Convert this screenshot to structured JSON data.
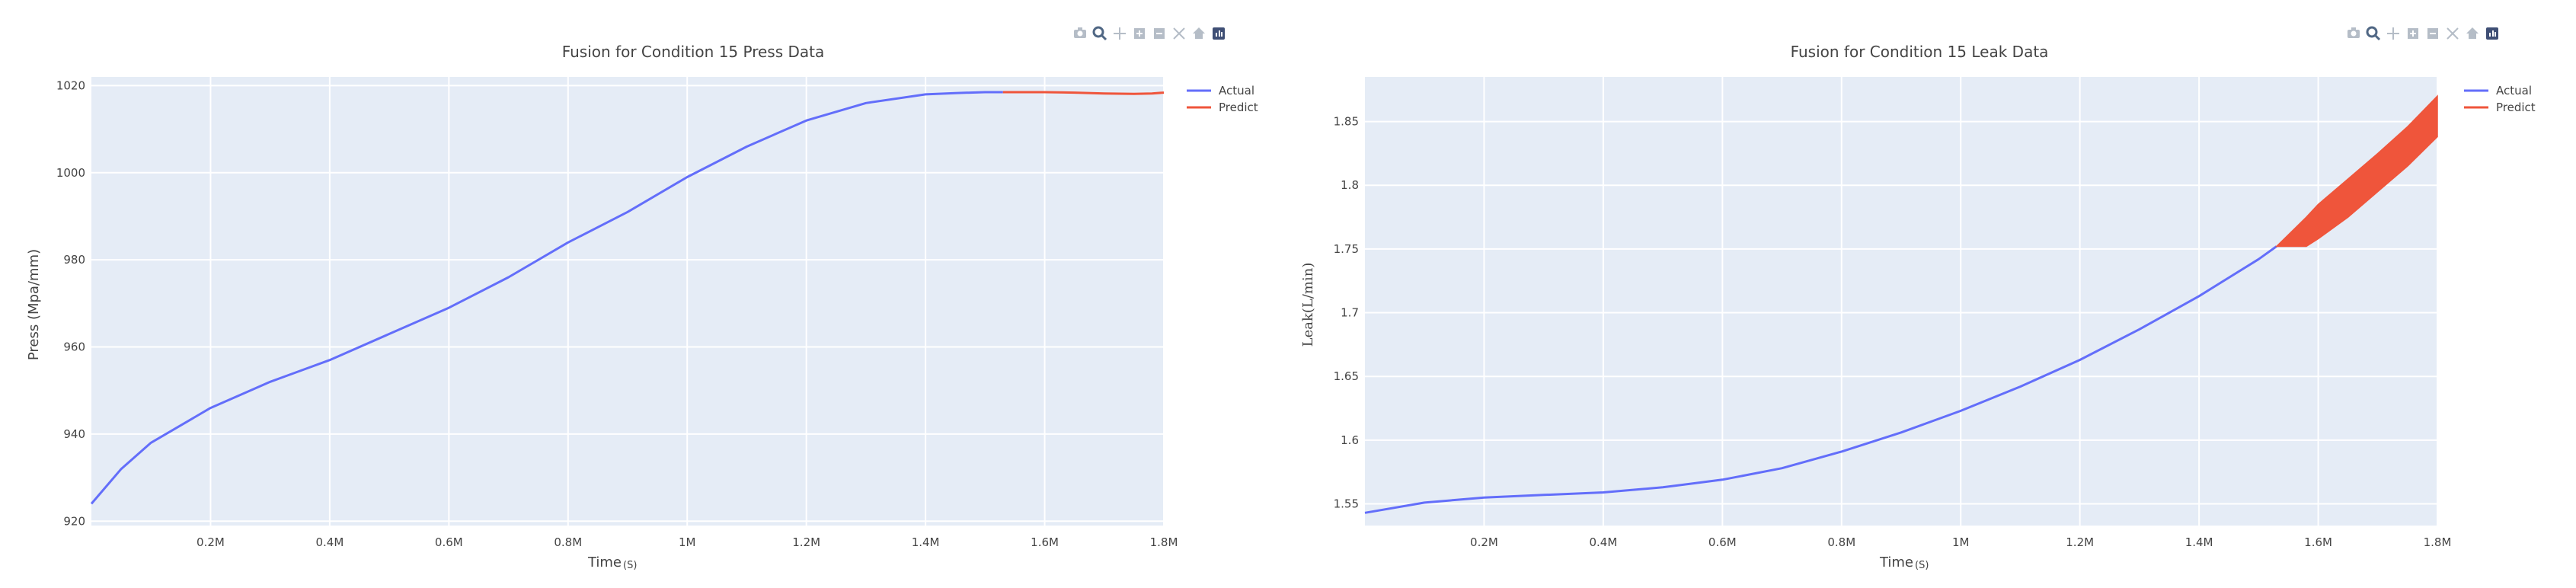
{
  "colors": {
    "actual": "#636efa",
    "predict": "#ef553b",
    "plot_bg": "#e5ecf6",
    "grid": "#ffffff",
    "text": "#444444",
    "modebar": "#b5bdc7",
    "modebar_active": "#506784"
  },
  "modebar_icons": [
    "camera-icon",
    "zoom-icon",
    "pan-icon",
    "zoom-in-icon",
    "zoom-out-icon",
    "autoscale-icon",
    "home-icon",
    "plotly-logo-icon"
  ],
  "chart_data": [
    {
      "type": "line",
      "title": "Fusion for Condition 15 Press Data",
      "xlabel": "Time",
      "xlabel_unit": "(S)",
      "ylabel": "Press (Mpa/mm)",
      "xlim": [
        0,
        1800000
      ],
      "ylim": [
        919,
        1022
      ],
      "x_ticks": [
        200000,
        400000,
        600000,
        800000,
        1000000,
        1200000,
        1400000,
        1600000,
        1800000
      ],
      "x_tick_labels": [
        "0.2M",
        "0.4M",
        "0.6M",
        "0.8M",
        "1M",
        "1.2M",
        "1.4M",
        "1.6M",
        "1.8M"
      ],
      "y_ticks": [
        920,
        940,
        960,
        980,
        1000,
        1020
      ],
      "y_tick_labels": [
        "920",
        "940",
        "960",
        "980",
        "1000",
        "1020"
      ],
      "grid": true,
      "legend_position": "top-right",
      "series": [
        {
          "name": "Actual",
          "x": [
            0,
            50000,
            100000,
            200000,
            300000,
            400000,
            500000,
            600000,
            700000,
            800000,
            900000,
            1000000,
            1100000,
            1200000,
            1300000,
            1400000,
            1450000,
            1500000,
            1530000
          ],
          "y": [
            924,
            932,
            938,
            946,
            952,
            957,
            963,
            969,
            976,
            984,
            991,
            999,
            1006,
            1012,
            1016,
            1018,
            1018.3,
            1018.5,
            1018.5
          ]
        },
        {
          "name": "Predict",
          "x": [
            1530000,
            1600000,
            1650000,
            1700000,
            1750000,
            1780000,
            1800000
          ],
          "y": [
            1018.5,
            1018.5,
            1018.4,
            1018.2,
            1018.1,
            1018.2,
            1018.4
          ]
        }
      ]
    },
    {
      "type": "area",
      "title": "Fusion for Condition 15 Leak Data",
      "xlabel": "Time",
      "xlabel_unit": "(S)",
      "ylabel": "Leak(L/min)",
      "xlim": [
        0,
        1800000
      ],
      "ylim": [
        1.533,
        1.885
      ],
      "x_ticks": [
        200000,
        400000,
        600000,
        800000,
        1000000,
        1200000,
        1400000,
        1600000,
        1800000
      ],
      "x_tick_labels": [
        "0.2M",
        "0.4M",
        "0.6M",
        "0.8M",
        "1M",
        "1.2M",
        "1.4M",
        "1.6M",
        "1.8M"
      ],
      "y_ticks": [
        1.55,
        1.6,
        1.65,
        1.7,
        1.75,
        1.8,
        1.85
      ],
      "y_tick_labels": [
        "1.55",
        "1.6",
        "1.65",
        "1.7",
        "1.75",
        "1.8",
        "1.85"
      ],
      "grid": true,
      "legend_position": "top-right",
      "series": [
        {
          "name": "Actual",
          "x": [
            0,
            100000,
            200000,
            300000,
            400000,
            500000,
            600000,
            700000,
            800000,
            900000,
            1000000,
            1100000,
            1200000,
            1300000,
            1400000,
            1500000,
            1530000
          ],
          "y": [
            1.543,
            1.551,
            1.555,
            1.557,
            1.559,
            1.563,
            1.569,
            1.578,
            1.591,
            1.606,
            1.623,
            1.642,
            1.663,
            1.687,
            1.713,
            1.742,
            1.752
          ]
        },
        {
          "name": "Predict",
          "x": [
            1530000,
            1580000,
            1600000,
            1650000,
            1700000,
            1750000,
            1800000
          ],
          "upper": [
            1.752,
            1.775,
            1.785,
            1.805,
            1.825,
            1.846,
            1.87
          ],
          "lower": [
            1.752,
            1.752,
            1.758,
            1.775,
            1.795,
            1.815,
            1.838
          ]
        }
      ]
    }
  ]
}
